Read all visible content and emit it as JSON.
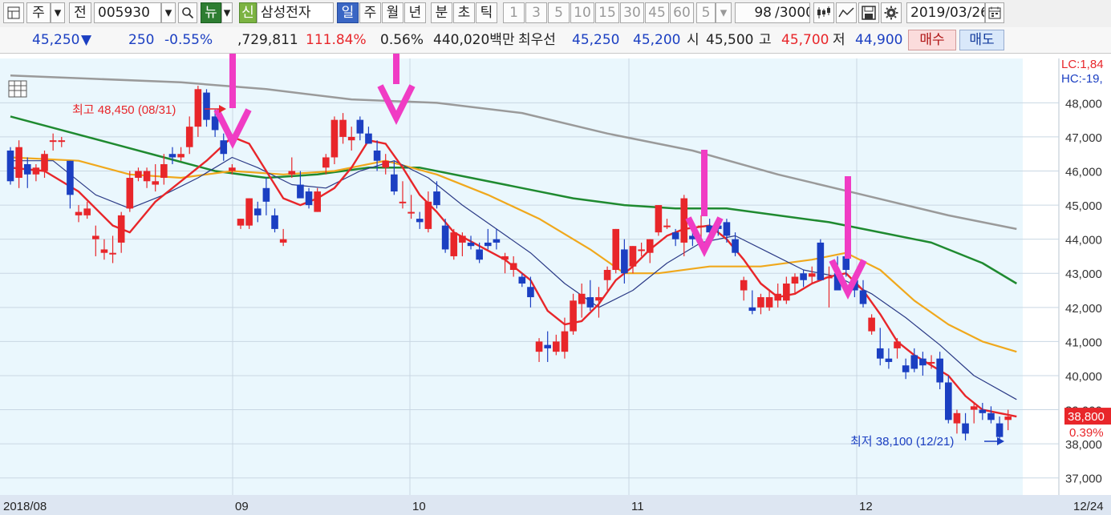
{
  "toolbar": {
    "market": "주",
    "prev": "전",
    "code": "005930",
    "news": "뉴",
    "credit": "신",
    "name": "삼성전자",
    "periods": [
      "일",
      "주",
      "월",
      "년",
      "분",
      "초",
      "틱"
    ],
    "intervals": [
      "1",
      "3",
      "5",
      "10",
      "15",
      "30",
      "45",
      "60"
    ],
    "count_select": "5",
    "count": "98",
    "count_total": "/3000",
    "date": "2019/03/26"
  },
  "info": {
    "price": "45,250",
    "change_arrow": "▼",
    "change": "250",
    "change_pct": "-0.55%",
    "volume": ",729,811",
    "volume_ratio": "111.84%",
    "turnover_ratio": "0.56%",
    "amount": "440,020백만",
    "best_label": "최우선",
    "best_ask": "45,250",
    "best_bid": "45,200",
    "open_label": "시",
    "open": "45,500",
    "high_label": "고",
    "high": "45,700",
    "low_label": "저",
    "low": "44,900",
    "buy_button": "매수",
    "sell_button": "매도"
  },
  "colors": {
    "up": "#e8262a",
    "down": "#1b3fc2",
    "ma5": "#e8262a",
    "ma10": "#2b3a86",
    "ma20": "#f0a81c",
    "ma60": "#1f8a30",
    "ma120": "#9a9a9a",
    "annotation_arrow": "#f03cc4",
    "plot_background": "#eaf7fd",
    "axis_background": "#dde6f2"
  },
  "chart_data": {
    "type": "candlestick",
    "x_tick_labels": [
      "2018/08",
      "09",
      "10",
      "11",
      "12",
      "12/24"
    ],
    "y_ticks": [
      37000,
      38000,
      39000,
      40000,
      41000,
      42000,
      43000,
      44000,
      45000,
      46000,
      47000,
      48000
    ],
    "y_tick_labels": [
      "37,000",
      "38,000",
      "39,000",
      "40,000",
      "41,000",
      "42,000",
      "43,000",
      "44,000",
      "45,000",
      "46,000",
      "47,000",
      "48,000"
    ],
    "ylim": [
      36500,
      49300
    ],
    "grid": true,
    "legend_labels": [
      "LC:1,84",
      "HC:-19,"
    ],
    "last_price_label": "38,800",
    "last_change_label": "0.39%",
    "high_annotation": "최고 48,450 (08/31)",
    "low_annotation": "최저 38,100 (12/21)",
    "candles": [
      [
        46600,
        46700,
        45600,
        45700
      ],
      [
        45800,
        46900,
        45500,
        46700
      ],
      [
        46200,
        46400,
        45500,
        45900
      ],
      [
        45900,
        46200,
        45700,
        46100
      ],
      [
        46000,
        46600,
        45800,
        46500
      ],
      [
        46900,
        47100,
        46600,
        46900
      ],
      [
        46900,
        47000,
        46700,
        46900
      ],
      [
        46300,
        46300,
        44900,
        45300
      ],
      [
        44700,
        45000,
        44500,
        44800
      ],
      [
        44700,
        45100,
        44600,
        44900
      ],
      [
        44000,
        44400,
        43500,
        44100
      ],
      [
        43600,
        44000,
        43400,
        43700
      ],
      [
        43600,
        44100,
        43300,
        43600
      ],
      [
        43900,
        44800,
        43600,
        44700
      ],
      [
        44900,
        46000,
        44800,
        45800
      ],
      [
        45800,
        46100,
        45700,
        46000
      ],
      [
        45700,
        46100,
        45500,
        46000
      ],
      [
        45600,
        46200,
        45400,
        45700
      ],
      [
        45800,
        46500,
        45600,
        46200
      ],
      [
        46500,
        46700,
        46200,
        46400
      ],
      [
        46400,
        46700,
        46300,
        46500
      ],
      [
        46700,
        47600,
        46500,
        47300
      ],
      [
        47300,
        48500,
        47000,
        48400
      ],
      [
        48300,
        48400,
        47300,
        47500
      ],
      [
        47600,
        47800,
        47000,
        47200
      ],
      [
        46900,
        47100,
        46300,
        46500
      ],
      [
        46000,
        46200,
        45900,
        46100
      ],
      [
        44400,
        44600,
        44300,
        44600
      ],
      [
        44400,
        45200,
        44300,
        45200
      ],
      [
        44900,
        45100,
        44500,
        44700
      ],
      [
        45500,
        45800,
        44700,
        45100
      ],
      [
        44700,
        44900,
        44200,
        44300
      ],
      [
        43900,
        44300,
        43800,
        44000
      ],
      [
        45900,
        46400,
        45800,
        46000
      ],
      [
        45600,
        46000,
        45300,
        45200
      ],
      [
        45400,
        45500,
        44900,
        45000
      ],
      [
        44800,
        45500,
        44800,
        45400
      ],
      [
        46100,
        46500,
        45900,
        46400
      ],
      [
        46400,
        47600,
        46200,
        47500
      ],
      [
        47000,
        47700,
        46800,
        47500
      ],
      [
        46900,
        47300,
        46600,
        47000
      ],
      [
        47500,
        47600,
        46900,
        47100
      ],
      [
        47100,
        47300,
        46800,
        46800
      ],
      [
        46600,
        46900,
        46000,
        46300
      ],
      [
        46100,
        46500,
        45900,
        46300
      ],
      [
        45900,
        46300,
        45300,
        45400
      ],
      [
        45100,
        45700,
        44900,
        45100
      ],
      [
        44800,
        45300,
        44600,
        44800
      ],
      [
        44600,
        44800,
        44300,
        44500
      ],
      [
        44300,
        45400,
        44200,
        45100
      ],
      [
        45400,
        45700,
        44900,
        45000
      ],
      [
        44400,
        44600,
        43600,
        43700
      ],
      [
        43500,
        44300,
        43400,
        44200
      ],
      [
        43900,
        44200,
        43500,
        44100
      ],
      [
        43900,
        44100,
        43700,
        43800
      ],
      [
        43700,
        43900,
        43300,
        43400
      ],
      [
        43900,
        44300,
        43700,
        43800
      ],
      [
        44000,
        44300,
        43700,
        43900
      ],
      [
        43400,
        43600,
        43000,
        43500
      ],
      [
        43100,
        43500,
        42900,
        43300
      ],
      [
        42900,
        43000,
        42600,
        42700
      ],
      [
        42600,
        42900,
        42000,
        42300
      ],
      [
        40700,
        41100,
        40400,
        41000
      ],
      [
        40900,
        41300,
        40400,
        40800
      ],
      [
        40700,
        41200,
        40600,
        41000
      ],
      [
        40700,
        41700,
        40500,
        41300
      ],
      [
        41300,
        42400,
        41200,
        42200
      ],
      [
        42100,
        42700,
        41700,
        42400
      ],
      [
        42300,
        42800,
        41900,
        42000
      ],
      [
        42200,
        42600,
        41700,
        42300
      ],
      [
        42800,
        43200,
        42500,
        43100
      ],
      [
        43100,
        44300,
        43000,
        44300
      ],
      [
        43700,
        44000,
        42700,
        43000
      ],
      [
        43200,
        43800,
        43000,
        43800
      ],
      [
        43700,
        43900,
        43500,
        43700
      ],
      [
        43600,
        44000,
        43300,
        44000
      ],
      [
        44200,
        45000,
        44100,
        45000
      ],
      [
        44400,
        44600,
        44300,
        44400
      ],
      [
        44200,
        44300,
        43800,
        44000
      ],
      [
        43900,
        45300,
        43500,
        45200
      ],
      [
        44100,
        44500,
        43800,
        44000
      ],
      [
        44400,
        44700,
        43900,
        44400
      ],
      [
        44400,
        44600,
        44100,
        44200
      ],
      [
        44400,
        44600,
        44100,
        44300
      ],
      [
        44500,
        44600,
        43900,
        44100
      ],
      [
        44000,
        44200,
        43500,
        43600
      ],
      [
        42500,
        42900,
        42200,
        42800
      ],
      [
        42000,
        42500,
        41800,
        41900
      ],
      [
        42000,
        42400,
        41800,
        42300
      ],
      [
        42000,
        42500,
        41900,
        42300
      ],
      [
        42200,
        42700,
        42000,
        42400
      ],
      [
        42200,
        42900,
        42100,
        42700
      ],
      [
        42700,
        43000,
        42400,
        42900
      ],
      [
        43000,
        43100,
        42600,
        42800
      ],
      [
        42900,
        43200,
        42700,
        43000
      ],
      [
        43900,
        44000,
        42800,
        42800
      ],
      [
        42900,
        43200,
        42000,
        42900
      ],
      [
        43000,
        43500,
        42600,
        42500
      ],
      [
        43500,
        43600,
        42900,
        43100
      ],
      [
        42800,
        43000,
        42300,
        42500
      ],
      [
        42500,
        42800,
        42000,
        42100
      ],
      [
        41300,
        41800,
        41200,
        41700
      ],
      [
        40800,
        41400,
        40300,
        40500
      ],
      [
        40500,
        40800,
        40200,
        40400
      ],
      [
        40800,
        41100,
        40500,
        41000
      ],
      [
        40300,
        40500,
        39900,
        40100
      ],
      [
        40600,
        40800,
        40100,
        40200
      ],
      [
        40500,
        40700,
        40000,
        40300
      ],
      [
        40400,
        40600,
        40200,
        40400
      ],
      [
        40500,
        40700,
        39600,
        39800
      ],
      [
        39800,
        40000,
        38600,
        38700
      ],
      [
        38600,
        39000,
        38300,
        38900
      ],
      [
        38600,
        38900,
        38100,
        38300
      ],
      [
        39000,
        39200,
        38600,
        39100
      ],
      [
        39000,
        39200,
        38700,
        38900
      ],
      [
        38900,
        39100,
        38600,
        38700
      ],
      [
        38600,
        38800,
        38100,
        38200
      ],
      [
        38700,
        39000,
        38400,
        38800
      ]
    ],
    "moving_averages": {
      "ma5": [
        [
          0,
          46100
        ],
        [
          4,
          46000
        ],
        [
          8,
          45400
        ],
        [
          12,
          44400
        ],
        [
          14,
          44200
        ],
        [
          17,
          45100
        ],
        [
          20,
          45700
        ],
        [
          23,
          46300
        ],
        [
          26,
          47000
        ],
        [
          28,
          46800
        ],
        [
          30,
          46000
        ],
        [
          32,
          45200
        ],
        [
          34,
          45000
        ],
        [
          36,
          45200
        ],
        [
          38,
          45500
        ],
        [
          40,
          46100
        ],
        [
          42,
          46900
        ],
        [
          44,
          46800
        ],
        [
          46,
          46100
        ],
        [
          48,
          45300
        ],
        [
          50,
          44800
        ],
        [
          52,
          44200
        ],
        [
          55,
          43800
        ],
        [
          58,
          43400
        ],
        [
          61,
          42800
        ],
        [
          63,
          41900
        ],
        [
          65,
          41500
        ],
        [
          67,
          41600
        ],
        [
          69,
          42100
        ],
        [
          71,
          42800
        ],
        [
          73,
          43200
        ],
        [
          75,
          43700
        ],
        [
          77,
          44100
        ],
        [
          79,
          44300
        ],
        [
          82,
          44400
        ],
        [
          84,
          44000
        ],
        [
          86,
          43400
        ],
        [
          88,
          42700
        ],
        [
          90,
          42300
        ],
        [
          92,
          42400
        ],
        [
          94,
          42700
        ],
        [
          96,
          42900
        ],
        [
          98,
          43000
        ],
        [
          100,
          42500
        ],
        [
          102,
          41800
        ],
        [
          104,
          41000
        ],
        [
          106,
          40600
        ],
        [
          108,
          40300
        ],
        [
          110,
          40000
        ],
        [
          112,
          39400
        ],
        [
          114,
          39000
        ],
        [
          116,
          38900
        ],
        [
          118,
          38800
        ]
      ],
      "ma10": [
        [
          0,
          46300
        ],
        [
          5,
          46300
        ],
        [
          10,
          45300
        ],
        [
          14,
          44900
        ],
        [
          18,
          45300
        ],
        [
          22,
          45800
        ],
        [
          26,
          46400
        ],
        [
          29,
          46100
        ],
        [
          33,
          45600
        ],
        [
          37,
          45500
        ],
        [
          41,
          46000
        ],
        [
          45,
          46300
        ],
        [
          49,
          45800
        ],
        [
          53,
          45000
        ],
        [
          57,
          44300
        ],
        [
          61,
          43600
        ],
        [
          65,
          42700
        ],
        [
          69,
          42000
        ],
        [
          73,
          42500
        ],
        [
          77,
          43300
        ],
        [
          81,
          43900
        ],
        [
          85,
          44100
        ],
        [
          89,
          43600
        ],
        [
          93,
          43100
        ],
        [
          97,
          42900
        ],
        [
          101,
          42400
        ],
        [
          105,
          41700
        ],
        [
          109,
          40900
        ],
        [
          113,
          40000
        ],
        [
          118,
          39300
        ]
      ],
      "ma20": [
        [
          0,
          46400
        ],
        [
          8,
          46300
        ],
        [
          14,
          45900
        ],
        [
          20,
          45800
        ],
        [
          26,
          46000
        ],
        [
          32,
          45900
        ],
        [
          38,
          46000
        ],
        [
          44,
          46300
        ],
        [
          50,
          45900
        ],
        [
          56,
          45300
        ],
        [
          62,
          44600
        ],
        [
          68,
          43700
        ],
        [
          72,
          43000
        ],
        [
          76,
          43000
        ],
        [
          82,
          43200
        ],
        [
          88,
          43200
        ],
        [
          94,
          43400
        ],
        [
          98,
          43600
        ],
        [
          102,
          43100
        ],
        [
          106,
          42200
        ],
        [
          110,
          41500
        ],
        [
          114,
          41000
        ],
        [
          118,
          40700
        ]
      ],
      "ma60": [
        [
          0,
          47600
        ],
        [
          6,
          47200
        ],
        [
          12,
          46800
        ],
        [
          18,
          46400
        ],
        [
          24,
          46000
        ],
        [
          30,
          45800
        ],
        [
          36,
          45900
        ],
        [
          42,
          46100
        ],
        [
          48,
          46100
        ],
        [
          54,
          45800
        ],
        [
          60,
          45500
        ],
        [
          66,
          45200
        ],
        [
          72,
          45000
        ],
        [
          78,
          44900
        ],
        [
          84,
          44900
        ],
        [
          90,
          44700
        ],
        [
          96,
          44500
        ],
        [
          102,
          44200
        ],
        [
          108,
          43900
        ],
        [
          114,
          43300
        ],
        [
          118,
          42700
        ]
      ],
      "ma120": [
        [
          0,
          48800
        ],
        [
          10,
          48700
        ],
        [
          20,
          48600
        ],
        [
          30,
          48400
        ],
        [
          40,
          48100
        ],
        [
          50,
          48000
        ],
        [
          60,
          47700
        ],
        [
          70,
          47100
        ],
        [
          80,
          46600
        ],
        [
          90,
          45900
        ],
        [
          100,
          45300
        ],
        [
          110,
          44700
        ],
        [
          118,
          44300
        ]
      ]
    }
  }
}
